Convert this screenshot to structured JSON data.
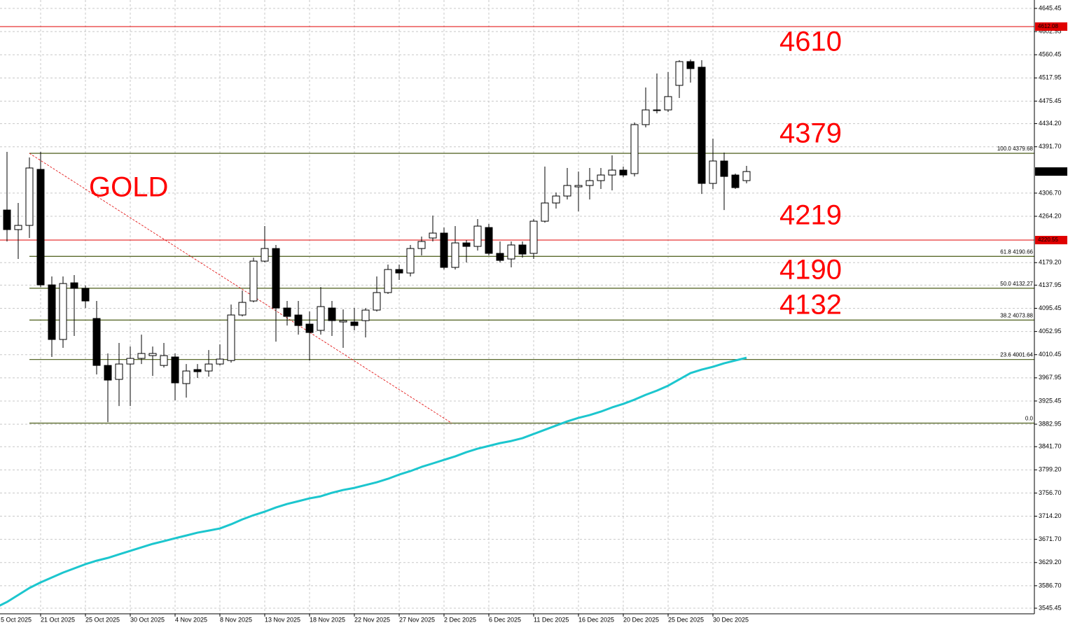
{
  "chart_data": {
    "type": "candlestick",
    "categories": [
      "5 Oct 2025",
      null,
      null,
      null,
      "21 Oct 2025",
      null,
      null,
      null,
      "25 Oct 2025",
      null,
      null,
      null,
      "30 Oct 2025",
      null,
      null,
      null,
      "4 Nov 2025",
      null,
      null,
      null,
      "8 Nov 2025",
      null,
      null,
      null,
      "13 Nov 2025",
      null,
      null,
      null,
      "18 Nov 2025",
      null,
      null,
      null,
      "22 Nov 2025",
      null,
      null,
      null,
      "27 Nov 2025",
      null,
      null,
      null,
      "2 Dec 2025",
      null,
      null,
      null,
      "6 Dec 2025",
      null,
      null,
      null,
      "11 Dec 2025",
      null,
      null,
      null,
      "16 Dec 2025",
      null,
      null,
      null,
      "20 Dec 2025",
      null,
      null,
      null,
      "25 Dec 2025",
      null,
      null,
      null,
      "30 Dec 2025",
      null,
      null,
      null
    ],
    "open": [
      null,
      4275.7,
      4239.8,
      4247.5,
      4350.2,
      4138.4,
      4038.3,
      4142.2,
      4132.0,
      4076.8,
      3990.7,
      3965.1,
      3993.3,
      4003.6,
      4008.7,
      3990.7,
      4006.2,
      3957.4,
      3983.1,
      3980.5,
      3993.3,
      3999.7,
      4083.2,
      4108.9,
      4182.0,
      4205.1,
      4096.0,
      4083.2,
      4066.5,
      4055.0,
      4096.0,
      4070.4,
      4070.4,
      4072.9,
      4092.2,
      4124.3,
      4166.6,
      4160.2,
      4205.1,
      4224.4,
      4233.4,
      4170.5,
      4215.4,
      4209.0,
      4243.6,
      4196.2,
      4185.9,
      4211.6,
      4196.2,
      4255.2,
      4288.6,
      4301.4,
      4318.1,
      4320.7,
      4329.6,
      4339.9,
      4348.9,
      4342.5,
      4432.3,
      4458.0,
      4459.3,
      4504.3,
      4547.9,
      4537.6,
      4324.5,
      4365.6,
      4339.9,
      4329.6
    ],
    "high": [
      null,
      4382.3,
      4288.6,
      4372.0,
      4382.3,
      4153.8,
      4153.8,
      4156.4,
      4137.1,
      4108.9,
      4012.6,
      4031.9,
      4025.4,
      4047.2,
      4025.4,
      4031.9,
      4012.6,
      3993.3,
      3993.3,
      4019.0,
      4029.3,
      4102.4,
      4128.1,
      4188.4,
      4246.2,
      4211.6,
      4108.9,
      4108.9,
      4089.6,
      4134.5,
      4108.9,
      4093.4,
      4096.0,
      4096.0,
      4153.8,
      4175.6,
      4175.6,
      4211.6,
      4227.0,
      4265.5,
      4243.6,
      4246.2,
      4220.5,
      4259.1,
      4250.1,
      4218.0,
      4218.0,
      4218.0,
      4259.1,
      4355.3,
      4307.8,
      4352.8,
      4346.3,
      4352.8,
      4352.8,
      4375.9,
      4355.3,
      4436.2,
      4500.4,
      4526.1,
      4528.6,
      4550.4,
      4551.7,
      4550.4,
      4406.7,
      4381.0,
      4342.5,
      4356.6
    ],
    "low": [
      null,
      4218.0,
      4185.9,
      4224.4,
      4134.5,
      4006.2,
      4022.9,
      4044.7,
      4096.0,
      3974.1,
      3886.8,
      3916.3,
      3916.3,
      3993.3,
      3971.5,
      3986.9,
      3926.6,
      3931.7,
      3967.7,
      3970.2,
      3990.7,
      3995.9,
      4080.6,
      4106.3,
      4179.5,
      4034.4,
      4063.9,
      4047.2,
      3999.7,
      4047.2,
      4044.7,
      4022.9,
      4055.0,
      4042.1,
      4089.6,
      4121.7,
      4147.4,
      4153.8,
      4192.3,
      4218.0,
      4166.6,
      4166.6,
      4179.5,
      4201.3,
      4192.3,
      4179.5,
      4170.5,
      4188.4,
      4185.9,
      4252.6,
      4278.3,
      4295.0,
      4273.2,
      4295.0,
      4314.3,
      4311.7,
      4336.1,
      4337.3,
      4427.2,
      4452.9,
      4455.4,
      4481.1,
      4509.4,
      4305.2,
      4314.3,
      4275.7,
      4314.3,
      4324.5
    ],
    "close": [
      null,
      4239.8,
      4247.5,
      4352.8,
      4138.4,
      4038.3,
      4140.9,
      4132.0,
      4108.9,
      3990.7,
      3963.8,
      3993.3,
      4003.6,
      4012.6,
      4012.6,
      4008.7,
      3958.7,
      3980.5,
      3979.2,
      3993.3,
      4002.3,
      4083.2,
      4106.3,
      4182.0,
      4205.1,
      4096.0,
      4080.6,
      4063.9,
      4051.1,
      4098.6,
      4072.9,
      4072.9,
      4063.9,
      4092.2,
      4124.3,
      4166.6,
      4160.2,
      4205.1,
      4218.0,
      4233.4,
      4170.5,
      4215.4,
      4209.0,
      4246.2,
      4196.2,
      4183.3,
      4211.6,
      4194.9,
      4255.2,
      4288.6,
      4301.4,
      4320.7,
      4320.7,
      4329.6,
      4339.9,
      4348.9,
      4339.9,
      4432.3,
      4459.3,
      4459.3,
      4483.7,
      4547.9,
      4535.0,
      4324.5,
      4365.6,
      4337.3,
      4316.8,
      4346.25
    ],
    "up_color": "#ffffff",
    "down_color": "#000000",
    "moving_average": {
      "color": "#1cc6ce",
      "values": [
        3546.6,
        3556.9,
        3569.7,
        3582.5,
        3592.8,
        3601.8,
        3610.8,
        3618.5,
        3626.2,
        3632.6,
        3637.7,
        3644.2,
        3650.6,
        3657.0,
        3663.4,
        3668.5,
        3673.7,
        3678.8,
        3684.0,
        3687.8,
        3691.7,
        3699.4,
        3708.3,
        3716.0,
        3722.5,
        3730.2,
        3736.6,
        3741.7,
        3746.9,
        3750.7,
        3757.1,
        3762.3,
        3766.1,
        3771.3,
        3776.4,
        3782.8,
        3790.5,
        3796.9,
        3804.6,
        3811.0,
        3817.5,
        3823.9,
        3831.6,
        3838.0,
        3843.1,
        3848.2,
        3852.1,
        3857.3,
        3865.0,
        3872.7,
        3880.4,
        3888.1,
        3894.5,
        3899.6,
        3906.0,
        3913.7,
        3920.2,
        3927.9,
        3936.8,
        3944.5,
        3953.5,
        3965.1,
        3976.6,
        3983.1,
        3988.2,
        3994.6,
        3999.7,
        4004.8
      ]
    },
    "ylim": [
      3535.2,
      4660.85
    ],
    "yticks": [
      4645.45,
      4602.95,
      4560.45,
      4517.95,
      4475.45,
      {
        "value": 4434.2,
        "label": "4434.20"
      },
      {
        "value": 4391.7,
        "label": "4391.70"
      },
      {
        "value": 4306.7,
        "label": "4306.70"
      },
      {
        "value": 4264.2,
        "label": "4264.20"
      },
      {
        "value": 4179.2,
        "label": "4179.20"
      },
      4137.95,
      4095.45,
      4052.95,
      4010.45,
      3967.95,
      3925.45,
      3882.95,
      {
        "value": 3841.7,
        "label": "3841.70"
      },
      {
        "value": 3799.2,
        "label": "3799.20"
      },
      {
        "value": 3756.7,
        "label": "3756.70"
      },
      {
        "value": 3714.2,
        "label": "3714.20"
      },
      {
        "value": 3671.7,
        "label": "3671.70"
      },
      {
        "value": 3629.2,
        "label": "3629.20"
      },
      {
        "value": 3586.7,
        "label": "3586.70"
      },
      3545.45
    ],
    "grid": true,
    "hlines": [
      {
        "value": 4612.08,
        "color": "#e00000"
      },
      {
        "value": 4220.55,
        "color": "#e00000"
      }
    ],
    "last_price": 4346.25,
    "fibonacci": {
      "color": "#5b6b2d",
      "levels": [
        {
          "value": 4379.68,
          "label": "100.0 4379.68"
        },
        {
          "value": 4190.66,
          "label": "61.8 4190.66"
        },
        {
          "value": 4132.27,
          "label": "50.0 4132.27"
        },
        {
          "value": 4073.88,
          "label": "38.2 4073.88"
        },
        {
          "value": 4001.64,
          "label": "23.6 4001.64"
        },
        {
          "value": 3884.87,
          "label": "0.0"
        }
      ]
    },
    "annotations": [
      "GOLD",
      "4610",
      "4379",
      "4219",
      "4190",
      "4132"
    ]
  }
}
